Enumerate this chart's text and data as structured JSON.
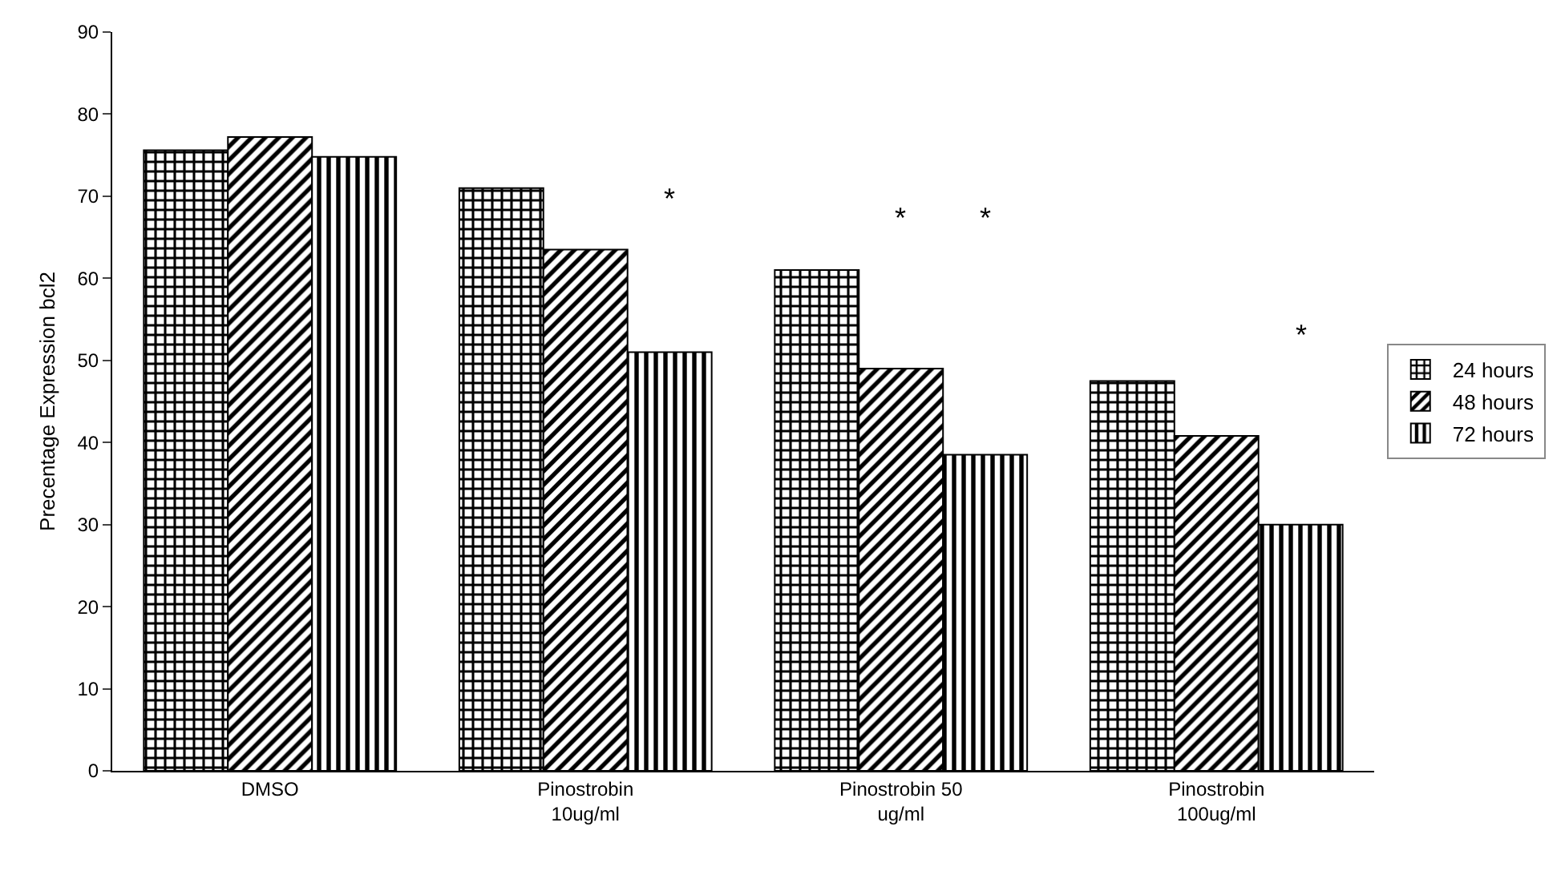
{
  "chart_data": {
    "type": "bar",
    "ylabel": "Precentage Expression bcl2",
    "categories": [
      "DMSO",
      "Pinostrobin\n10ug/ml",
      "Pinostrobin 50\nug/ml",
      "Pinostrobin\n100ug/ml"
    ],
    "series": [
      {
        "name": "24 hours",
        "color": "#000000",
        "values": [
          75.6,
          71,
          61,
          47.5
        ]
      },
      {
        "name": "48 hours",
        "color": "#000000",
        "values": [
          77.2,
          63.5,
          49,
          40.8
        ]
      },
      {
        "name": "72 hours",
        "color": "#000000",
        "values": [
          74.8,
          51,
          38.5,
          30
        ]
      }
    ],
    "ylim": [
      0,
      90
    ],
    "yticks": [
      0,
      10,
      20,
      30,
      40,
      50,
      60,
      70,
      80,
      90
    ],
    "grid": false,
    "legend": "right",
    "annotations": [
      "*",
      "*",
      "*",
      "*"
    ]
  }
}
